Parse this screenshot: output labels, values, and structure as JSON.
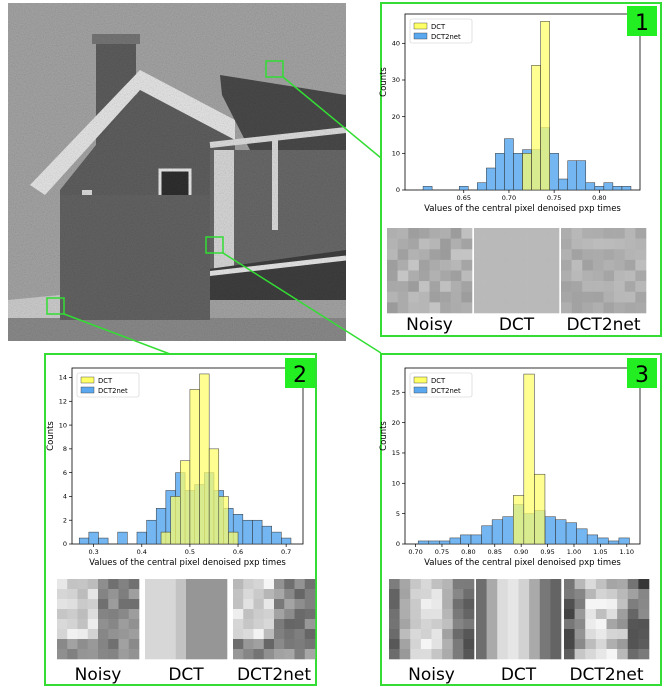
{
  "panels": [
    {
      "number": "1",
      "chart_data": {
        "type": "bar",
        "xlabel": "Values of the central pixel denoised pxp times",
        "ylabel": "Counts",
        "xlim": [
          0.585,
          0.845
        ],
        "ylim": [
          0,
          48
        ],
        "xticks": [
          "0.65",
          "0.70",
          "0.75",
          "0.80"
        ],
        "xtick_values": [
          0.65,
          0.7,
          0.75,
          0.8
        ],
        "yticks": [
          "0",
          "10",
          "20",
          "30",
          "40"
        ],
        "ytick_values": [
          0,
          10,
          20,
          30,
          40
        ],
        "legend": "top-left",
        "series": [
          {
            "name": "DCT",
            "color": "#ffff66",
            "bins": [
              [
                0.715,
                0.725,
                10
              ],
              [
                0.725,
                0.735,
                34
              ],
              [
                0.735,
                0.745,
                46
              ]
            ]
          },
          {
            "name": "DCT2net",
            "color": "#5aa9f0",
            "bins": [
              [
                0.605,
                0.615,
                1
              ],
              [
                0.645,
                0.655,
                1
              ],
              [
                0.665,
                0.675,
                2
              ],
              [
                0.675,
                0.685,
                6
              ],
              [
                0.685,
                0.695,
                10
              ],
              [
                0.695,
                0.705,
                14
              ],
              [
                0.705,
                0.715,
                10
              ],
              [
                0.715,
                0.725,
                11
              ],
              [
                0.725,
                0.735,
                11
              ],
              [
                0.735,
                0.745,
                17
              ],
              [
                0.745,
                0.755,
                10
              ],
              [
                0.755,
                0.765,
                3
              ],
              [
                0.765,
                0.775,
                8
              ],
              [
                0.775,
                0.785,
                8
              ],
              [
                0.785,
                0.795,
                2
              ],
              [
                0.795,
                0.805,
                1
              ],
              [
                0.805,
                0.815,
                2
              ],
              [
                0.815,
                0.825,
                1
              ],
              [
                0.825,
                0.835,
                1
              ]
            ]
          }
        ]
      },
      "patch_labels": [
        "Noisy",
        "DCT",
        "DCT2net"
      ]
    },
    {
      "number": "2",
      "chart_data": {
        "type": "bar",
        "xlabel": "Values of the central pixel denoised pxp times",
        "ylabel": "Counts",
        "xlim": [
          0.255,
          0.735
        ],
        "ylim": [
          0,
          14.8
        ],
        "xticks": [
          "0.3",
          "0.4",
          "0.5",
          "0.6",
          "0.7"
        ],
        "xtick_values": [
          0.3,
          0.4,
          0.5,
          0.6,
          0.7
        ],
        "yticks": [
          "0",
          "2",
          "4",
          "6",
          "8",
          "10",
          "12",
          "14"
        ],
        "ytick_values": [
          0,
          2,
          4,
          6,
          8,
          10,
          12,
          14
        ],
        "legend": "top-left",
        "series": [
          {
            "name": "DCT",
            "color": "#ffff66",
            "bins": [
              [
                0.44,
                0.46,
                1
              ],
              [
                0.46,
                0.48,
                4
              ],
              [
                0.48,
                0.5,
                7
              ],
              [
                0.5,
                0.52,
                13
              ],
              [
                0.52,
                0.54,
                14.3
              ],
              [
                0.54,
                0.56,
                8
              ],
              [
                0.56,
                0.58,
                4
              ],
              [
                0.58,
                0.6,
                1
              ]
            ]
          },
          {
            "name": "DCT2net",
            "color": "#5aa9f0",
            "bins": [
              [
                0.27,
                0.29,
                0.5
              ],
              [
                0.29,
                0.31,
                1
              ],
              [
                0.31,
                0.33,
                0.5
              ],
              [
                0.35,
                0.37,
                1
              ],
              [
                0.39,
                0.41,
                1
              ],
              [
                0.41,
                0.43,
                2
              ],
              [
                0.43,
                0.45,
                3
              ],
              [
                0.45,
                0.47,
                4.5
              ],
              [
                0.47,
                0.49,
                6
              ],
              [
                0.49,
                0.51,
                4.5
              ],
              [
                0.51,
                0.53,
                5
              ],
              [
                0.53,
                0.55,
                6
              ],
              [
                0.55,
                0.57,
                4.5
              ],
              [
                0.57,
                0.59,
                3
              ],
              [
                0.59,
                0.61,
                2.5
              ],
              [
                0.61,
                0.63,
                2
              ],
              [
                0.63,
                0.65,
                2
              ],
              [
                0.65,
                0.67,
                1.5
              ],
              [
                0.67,
                0.69,
                1
              ],
              [
                0.69,
                0.71,
                0.5
              ]
            ]
          }
        ]
      },
      "patch_labels": [
        "Noisy",
        "DCT",
        "DCT2net"
      ]
    },
    {
      "number": "3",
      "chart_data": {
        "type": "bar",
        "xlabel": "Values of the central pixel denoised pxp times",
        "ylabel": "Counts",
        "xlim": [
          0.68,
          1.125
        ],
        "ylim": [
          0,
          29
        ],
        "xticks": [
          "0.70",
          "0.75",
          "0.80",
          "0.85",
          "0.90",
          "0.95",
          "1.00",
          "1.05",
          "1.10"
        ],
        "xtick_values": [
          0.7,
          0.75,
          0.8,
          0.85,
          0.9,
          0.95,
          1.0,
          1.05,
          1.1
        ],
        "yticks": [
          "0",
          "5",
          "10",
          "15",
          "20",
          "25"
        ],
        "ytick_values": [
          0,
          5,
          10,
          15,
          20,
          25
        ],
        "legend": "top-left",
        "series": [
          {
            "name": "DCT",
            "color": "#ffff66",
            "bins": [
              [
                0.885,
                0.905,
                8
              ],
              [
                0.905,
                0.925,
                28
              ],
              [
                0.925,
                0.945,
                11.5
              ]
            ]
          },
          {
            "name": "DCT2net",
            "color": "#5aa9f0",
            "bins": [
              [
                0.705,
                0.725,
                0.5
              ],
              [
                0.725,
                0.745,
                0.5
              ],
              [
                0.745,
                0.765,
                0.5
              ],
              [
                0.765,
                0.785,
                1
              ],
              [
                0.785,
                0.805,
                1.5
              ],
              [
                0.805,
                0.825,
                1.5
              ],
              [
                0.825,
                0.845,
                3
              ],
              [
                0.845,
                0.865,
                4
              ],
              [
                0.865,
                0.885,
                4.5
              ],
              [
                0.885,
                0.905,
                6.5
              ],
              [
                0.905,
                0.925,
                5
              ],
              [
                0.925,
                0.945,
                5.5
              ],
              [
                0.945,
                0.965,
                4.5
              ],
              [
                0.965,
                0.985,
                4
              ],
              [
                0.985,
                1.005,
                3.5
              ],
              [
                1.005,
                1.025,
                2.5
              ],
              [
                1.025,
                1.045,
                1.5
              ],
              [
                1.045,
                1.065,
                1
              ],
              [
                1.065,
                1.085,
                0.5
              ],
              [
                1.085,
                1.105,
                1
              ]
            ]
          }
        ]
      },
      "patch_labels": [
        "Noisy",
        "DCT",
        "DCT2net"
      ]
    }
  ]
}
